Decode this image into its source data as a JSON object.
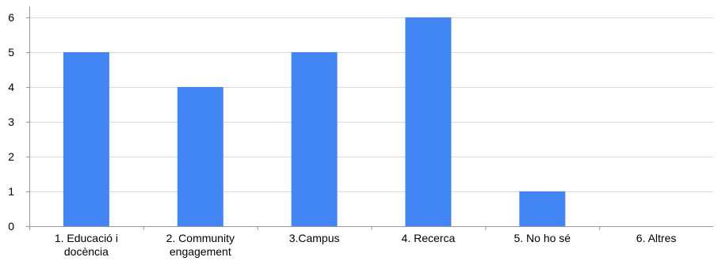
{
  "chart_data": {
    "type": "bar",
    "categories": [
      [
        "1. Educació i",
        "docència"
      ],
      [
        "2. Community",
        "engagement"
      ],
      [
        "3.Campus"
      ],
      [
        "4. Recerca"
      ],
      [
        "5. No ho sé"
      ],
      [
        "6. Altres"
      ]
    ],
    "values": [
      5,
      4,
      5,
      6,
      1,
      0
    ],
    "ylim": [
      0,
      6
    ],
    "yticks": [
      0,
      1,
      2,
      3,
      4,
      5,
      6
    ],
    "grid": true,
    "title": "",
    "xlabel": "",
    "ylabel": "",
    "colors": {
      "bar": "#4285f4",
      "grid": "#d9d9d9",
      "axis": "#9a9a9a",
      "text": "#000000"
    }
  }
}
